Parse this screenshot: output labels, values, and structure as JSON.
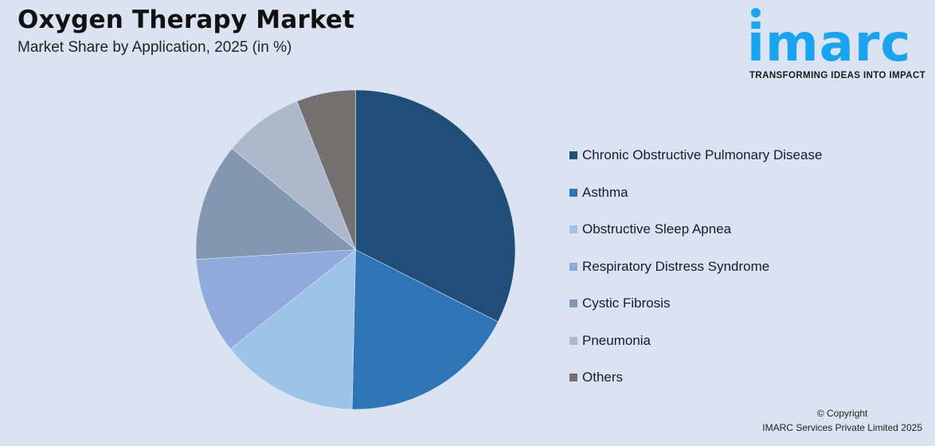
{
  "header": {
    "title": "Oxygen Therapy Market",
    "subtitle": "Market Share by Application, 2025 (in %)"
  },
  "logo": {
    "wordmark": "imarc",
    "tagline": "TRANSFORMING IDEAS INTO IMPACT",
    "color": "#1aa3f0"
  },
  "footer": {
    "line1": "© Copyright",
    "line2": "IMARC Services Private Limited 2025"
  },
  "chart_data": {
    "type": "pie",
    "title": "Oxygen Therapy Market",
    "subtitle": "Market Share by Application, 2025 (in %)",
    "legend_position": "right",
    "start_angle_deg": 0,
    "direction": "clockwise",
    "categories": [
      "Chronic Obstructive Pulmonary Disease",
      "Asthma",
      "Obstructive Sleep Apnea",
      "Respiratory Distress Syndrome",
      "Cystic Fibrosis",
      "Pneumonia",
      "Others"
    ],
    "values": [
      32.5,
      17.9,
      14.0,
      9.7,
      11.9,
      8.1,
      6.0
    ],
    "colors": [
      "#1f4e79",
      "#2e75b6",
      "#9dc3e6",
      "#8faadc",
      "#8497b0",
      "#adb9ca",
      "#767171"
    ],
    "value_labels_shown": false
  },
  "legend": {
    "items": [
      {
        "label": "Chronic Obstructive Pulmonary Disease",
        "color": "#1f4e79"
      },
      {
        "label": "Asthma",
        "color": "#2e75b6"
      },
      {
        "label": "Obstructive Sleep Apnea",
        "color": "#9dc3e6"
      },
      {
        "label": "Respiratory Distress Syndrome",
        "color": "#8faadc"
      },
      {
        "label": "Cystic Fibrosis",
        "color": "#8497b0"
      },
      {
        "label": "Pneumonia",
        "color": "#adb9ca"
      },
      {
        "label": "Others",
        "color": "#767171"
      }
    ]
  }
}
